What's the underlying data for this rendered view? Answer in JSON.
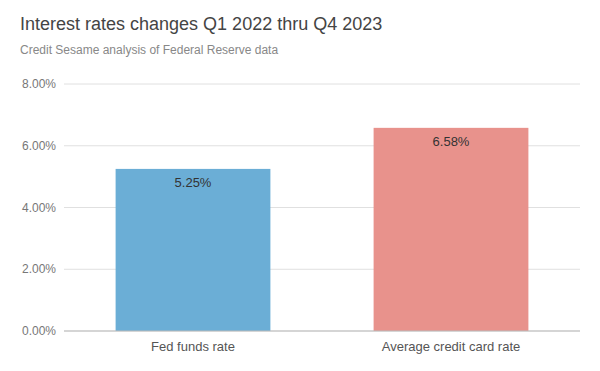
{
  "chart_data": {
    "type": "bar",
    "title": "Interest rates changes Q1 2022 thru Q4 2023",
    "subtitle": "Credit Sesame analysis of Federal Reserve data",
    "categories": [
      "Fed funds rate",
      "Average credit card rate"
    ],
    "values": [
      5.25,
      6.58
    ],
    "value_labels": [
      "5.25%",
      "6.58%"
    ],
    "colors": [
      "#6BAED6",
      "#E8928C"
    ],
    "ylim": [
      0,
      8.0
    ],
    "yticks": [
      {
        "value": 0.0,
        "label": "0.00%"
      },
      {
        "value": 2.0,
        "label": "2.00%"
      },
      {
        "value": 4.0,
        "label": "4.00%"
      },
      {
        "value": 6.0,
        "label": "6.00%"
      },
      {
        "value": 8.0,
        "label": "8.00%"
      }
    ],
    "grid": true,
    "data_labels": true
  }
}
